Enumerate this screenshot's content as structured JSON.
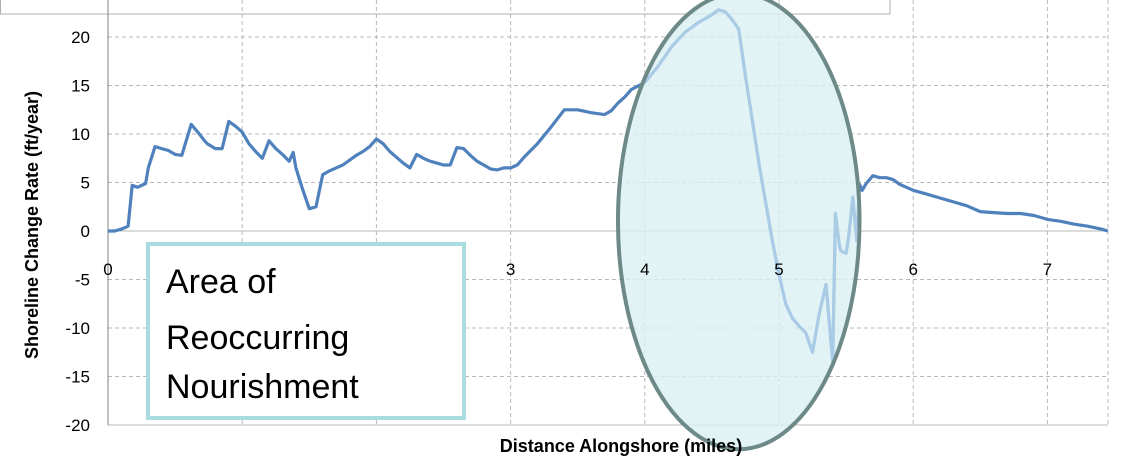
{
  "chart_data": {
    "type": "line",
    "title": "",
    "xlabel": "Distance Alongshore (miles)",
    "ylabel": "Shoreline Change Rate (ft/year)",
    "xlim": [
      0,
      7.5
    ],
    "ylim": [
      -20,
      22
    ],
    "x_ticks": [
      "0",
      "1",
      "2",
      "3",
      "4",
      "5",
      "6",
      "7"
    ],
    "x_tick_values": [
      0,
      1,
      2,
      3,
      4,
      5,
      6,
      7
    ],
    "y_ticks": [
      "20",
      "15",
      "10",
      "5",
      "0",
      "-5",
      "-10",
      "-15",
      "-20"
    ],
    "y_tick_values": [
      20,
      15,
      10,
      5,
      0,
      -5,
      -10,
      -15,
      -20
    ],
    "grid": true,
    "grid_style": "dashed",
    "line_color": "#4F81BD",
    "series": [
      {
        "x": [
          0,
          0.05,
          0.1,
          0.15,
          0.18,
          0.22,
          0.28,
          0.3,
          0.35,
          0.4,
          0.45,
          0.5,
          0.55,
          0.62,
          0.68,
          0.72,
          0.74,
          0.8,
          0.85,
          0.9,
          0.95,
          1.0,
          1.05,
          1.1,
          1.15,
          1.2,
          1.25,
          1.3,
          1.35,
          1.38,
          1.4,
          1.45,
          1.5,
          1.55,
          1.6,
          1.65,
          1.7,
          1.75,
          1.8,
          1.85,
          1.9,
          1.95,
          2.0,
          2.05,
          2.1,
          2.15,
          2.2,
          2.25,
          2.3,
          2.35,
          2.4,
          2.45,
          2.5,
          2.55,
          2.6,
          2.65,
          2.7,
          2.75,
          2.8,
          2.85,
          2.9,
          2.95,
          3.0,
          3.05,
          3.1,
          3.2,
          3.3,
          3.4,
          3.5,
          3.6,
          3.7,
          3.75,
          3.8,
          3.85,
          3.9,
          4.0,
          4.1,
          4.2,
          4.3,
          4.4,
          4.5,
          4.55,
          4.6,
          4.65,
          4.7,
          4.75,
          4.8,
          4.85,
          4.9,
          4.95,
          5.0,
          5.05,
          5.1,
          5.15,
          5.2,
          5.25,
          5.3,
          5.35,
          5.4,
          5.42,
          5.45,
          5.46,
          5.48,
          5.5,
          5.52,
          5.55,
          5.58,
          5.6,
          5.62,
          5.65,
          5.7,
          5.75,
          5.8,
          5.85,
          5.9,
          5.95,
          6.0,
          6.1,
          6.2,
          6.3,
          6.4,
          6.5,
          6.6,
          6.7,
          6.8,
          6.9,
          7.0,
          7.1,
          7.2,
          7.3,
          7.4,
          7.45
        ],
        "y": [
          0,
          0,
          0.2,
          0.5,
          4.7,
          4.5,
          4.9,
          6.5,
          8.7,
          8.5,
          8.3,
          7.9,
          7.8,
          11.0,
          10.0,
          9.3,
          9.0,
          8.5,
          8.5,
          11.3,
          10.8,
          10.2,
          9.0,
          8.2,
          7.5,
          9.3,
          8.5,
          7.9,
          7.2,
          8.1,
          6.5,
          4.3,
          2.3,
          2.5,
          5.8,
          6.2,
          6.5,
          6.8,
          7.3,
          7.8,
          8.2,
          8.7,
          9.5,
          9.0,
          8.2,
          7.6,
          7.0,
          6.5,
          7.9,
          7.5,
          7.2,
          7.0,
          6.8,
          6.8,
          8.6,
          8.5,
          7.8,
          7.2,
          6.8,
          6.4,
          6.3,
          6.5,
          6.5,
          6.8,
          7.6,
          9.0,
          10.7,
          12.5,
          12.5,
          12.2,
          12.0,
          12.4,
          13.2,
          13.8,
          14.6,
          15.3,
          17.0,
          19.0,
          20.5,
          21.5,
          22.3,
          22.8,
          22.6,
          21.8,
          20.8,
          16.0,
          11.5,
          7.0,
          3.0,
          -1.0,
          -4.5,
          -7.5,
          -9.0,
          -9.8,
          -10.5,
          -12.5,
          -8.5,
          -5.5,
          -13.5,
          1.8,
          -1.5,
          -2.0,
          -2.2,
          -2.3,
          -0.5,
          3.5,
          -1.0,
          4.8,
          4.2,
          4.9,
          5.7,
          5.5,
          5.5,
          5.3,
          4.8,
          4.5,
          4.2,
          3.8,
          3.4,
          3.0,
          2.6,
          2.0,
          1.9,
          1.8,
          1.8,
          1.6,
          1.2,
          1.0,
          0.7,
          0.5,
          0.2,
          0
        ]
      }
    ],
    "annotations": {
      "callout_text": [
        "Area of",
        "Reoccurring",
        "Nourishment"
      ],
      "ellipse_center": [
        4.7,
        1.0
      ],
      "ellipse_radii": [
        0.9,
        23.5
      ],
      "ellipse_fill": "#DAF0F3",
      "ellipse_stroke": "#6E8A88",
      "callout_border": "#A8DCE0"
    }
  }
}
